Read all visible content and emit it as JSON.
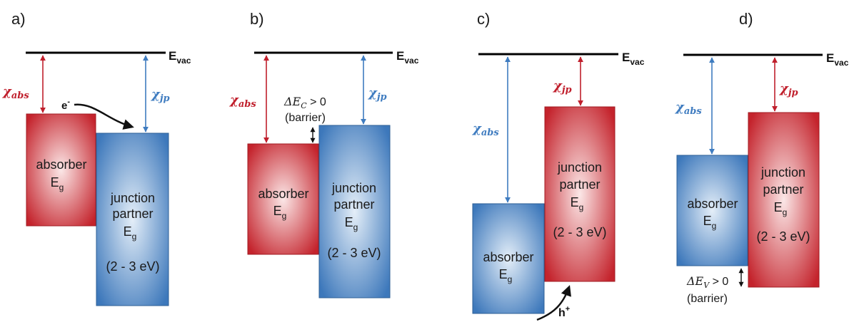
{
  "colors": {
    "red_edge": "#c0202a",
    "red_center": "#f6d5d5",
    "blue_edge": "#3a76b8",
    "blue_center": "#dbe8f5",
    "arrow_red": "#c01f2c",
    "arrow_blue": "#3f7cc0",
    "text": "#1a1a1a"
  },
  "common": {
    "evac_main": "E",
    "evac_sub": "vac",
    "chi": "χ",
    "sub_abs": "abs",
    "sub_jp": "jp",
    "absorber": "absorber",
    "junction": "junction",
    "partner": "partner",
    "eg_main": "E",
    "eg_sub": "g",
    "range": "(2 - 3 eV)"
  },
  "panels": {
    "a": {
      "label": "a)",
      "electron": "e",
      "electron_sup": "-"
    },
    "b": {
      "label": "b)",
      "delta": "ΔE",
      "delta_sub": "C",
      "cond": " > 0",
      "barrier": "(barrier)"
    },
    "c": {
      "label": "c)",
      "hole": "h",
      "hole_sup": "+"
    },
    "d": {
      "label": "d)",
      "delta": "ΔE",
      "delta_sub": "V",
      "cond": " > 0",
      "barrier": "(barrier)"
    }
  }
}
